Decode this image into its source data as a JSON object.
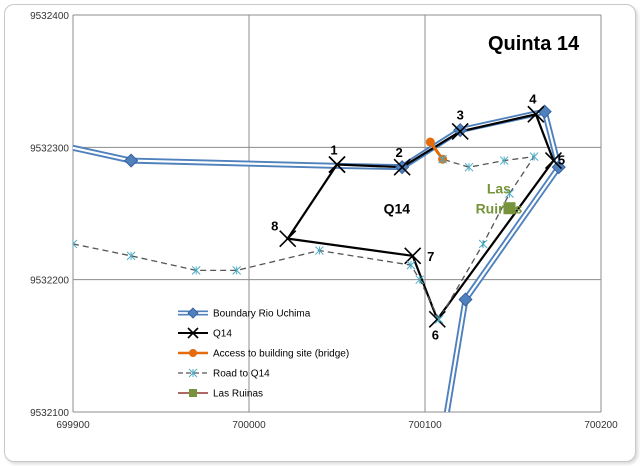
{
  "chart_data": {
    "type": "scatter",
    "title": "Quinta 14",
    "xlim": [
      699900,
      700200
    ],
    "ylim": [
      9532100,
      9532400
    ],
    "x_ticks": [
      "699900",
      "700000",
      "700100",
      "700200"
    ],
    "y_ticks": [
      "9532100",
      "9532200",
      "9532300",
      "9532400"
    ],
    "grid": true,
    "legend_position": "bottom-left",
    "series": [
      {
        "name": "Boundary Rio Uchima",
        "color": "#4f81bd",
        "style": "double-line-diamond",
        "segments": [
          [
            [
              699830,
              9532320
            ],
            [
              699933,
              9532290
            ],
            [
              700050,
              9532286
            ],
            [
              700087,
              9532285
            ],
            [
              700120,
              9532313
            ],
            [
              700168,
              9532327
            ],
            [
              700176,
              9532285
            ],
            [
              700123,
              9532185
            ],
            [
              700110,
              9532080
            ]
          ]
        ],
        "markers": [
          [
            699933,
            9532290
          ],
          [
            700087,
            9532285
          ],
          [
            700120,
            9532313
          ],
          [
            700168,
            9532327
          ],
          [
            700176,
            9532285
          ],
          [
            700123,
            9532185
          ]
        ]
      },
      {
        "name": "Q14",
        "color": "#000000",
        "style": "line-x",
        "points": [
          [
            700050,
            9532287
          ],
          [
            700087,
            9532285
          ],
          [
            700120,
            9532312
          ],
          [
            700163,
            9532325
          ],
          [
            700173,
            9532290
          ],
          [
            700107,
            9532170
          ],
          [
            700093,
            9532218
          ],
          [
            700022,
            9532231
          ],
          [
            700050,
            9532287
          ]
        ],
        "labels": [
          {
            "text": "1",
            "x": 700050,
            "y": 9532287
          },
          {
            "text": "2",
            "x": 700087,
            "y": 9532285
          },
          {
            "text": "3",
            "x": 700120,
            "y": 9532312
          },
          {
            "text": "4",
            "x": 700163,
            "y": 9532325
          },
          {
            "text": "5",
            "x": 700173,
            "y": 9532290
          },
          {
            "text": "6",
            "x": 700107,
            "y": 9532170
          },
          {
            "text": "7",
            "x": 700093,
            "y": 9532218
          },
          {
            "text": "8",
            "x": 700022,
            "y": 9532231
          }
        ]
      },
      {
        "name": "Access to building site (bridge)",
        "color": "#e46c0a",
        "style": "line-circle",
        "points": [
          [
            700103,
            9532304
          ],
          [
            700110,
            9532291
          ]
        ]
      },
      {
        "name": "Road to Q14",
        "color": "#4bacc6",
        "style": "dashed-star",
        "points": [
          [
            699900,
            9532227
          ],
          [
            699933,
            9532218
          ],
          [
            699970,
            9532207
          ],
          [
            699993,
            9532207
          ],
          [
            700040,
            9532222
          ],
          [
            700092,
            9532211
          ],
          [
            700097,
            9532200
          ],
          [
            700108,
            9532170
          ],
          [
            700133,
            9532227
          ],
          [
            700148,
            9532265
          ],
          [
            700162,
            9532293
          ],
          [
            700145,
            9532290
          ],
          [
            700125,
            9532285
          ],
          [
            700110,
            9532291
          ]
        ]
      },
      {
        "name": "Las Ruinas",
        "color": "#77933c",
        "style": "square",
        "points": [
          [
            700148,
            9532254
          ]
        ]
      }
    ],
    "annotations": [
      {
        "text": "Q14",
        "x": 700084,
        "y": 9532250,
        "color": "#000000"
      },
      {
        "text": "Las",
        "x": 700142,
        "y": 9532265,
        "color": "#77933c"
      },
      {
        "text": "Ruinas",
        "x": 700142,
        "y": 9532250,
        "color": "#77933c"
      }
    ]
  }
}
